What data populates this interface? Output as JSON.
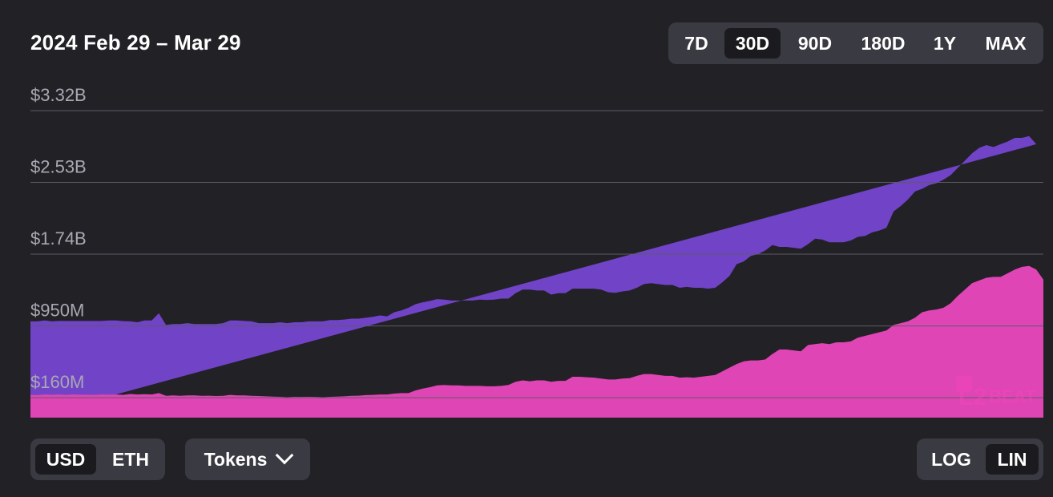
{
  "header": {
    "date_range": "2024 Feb 29 – Mar 29"
  },
  "range_selector": {
    "options": [
      "7D",
      "30D",
      "90D",
      "180D",
      "1Y",
      "MAX"
    ],
    "selected": "30D"
  },
  "currency_toggle": {
    "options": [
      "USD",
      "ETH"
    ],
    "selected": "USD"
  },
  "tokens_dropdown": {
    "label": "Tokens",
    "icon": "chevron-down-icon"
  },
  "scale_toggle": {
    "options": [
      "LOG",
      "LIN"
    ],
    "selected": "LIN"
  },
  "watermark": {
    "text": "L2BEAT"
  },
  "colors": {
    "background": "#222126",
    "series_upper": "#7143c7",
    "series_lower": "#df45b4",
    "gridline": "#5c5b66",
    "tick_label": "#a9a8b3",
    "control_bg": "#3a3a43",
    "control_active": "#1b1b1f"
  },
  "chart_data": {
    "type": "area",
    "stacked": true,
    "yscale": "linear",
    "ylim_millions": [
      -60,
      3320
    ],
    "yticks": [
      {
        "value": 160,
        "label": "$160M"
      },
      {
        "value": 950,
        "label": "$950M"
      },
      {
        "value": 1740,
        "label": "$1.74B"
      },
      {
        "value": 2530,
        "label": "$2.53B"
      },
      {
        "value": 3320,
        "label": "$3.32B"
      }
    ],
    "unit": "USD millions",
    "x_start": "2024-02-29",
    "x_end": "2024-03-29",
    "series": [
      {
        "color": "#df45b4",
        "values": [
          190,
          188,
          195,
          192,
          195,
          190,
          195,
          193,
          192,
          190,
          195,
          193,
          195,
          190,
          200,
          195,
          198,
          195,
          210,
          180,
          185,
          180,
          185,
          185,
          180,
          182,
          178,
          180,
          190,
          185,
          185,
          180,
          178,
          175,
          172,
          170,
          165,
          170,
          168,
          170,
          168,
          165,
          170,
          172,
          175,
          180,
          182,
          188,
          190,
          195,
          195,
          205,
          210,
          210,
          240,
          260,
          275,
          295,
          300,
          295,
          295,
          290,
          290,
          290,
          285,
          285,
          290,
          300,
          335,
          350,
          340,
          350,
          350,
          335,
          345,
          345,
          390,
          390,
          385,
          380,
          370,
          360,
          360,
          370,
          375,
          400,
          420,
          420,
          410,
          400,
          400,
          380,
          385,
          380,
          390,
          400,
          410,
          450,
          490,
          530,
          560,
          570,
          570,
          580,
          640,
          690,
          690,
          680,
          670,
          740,
          750,
          760,
          750,
          770,
          770,
          780,
          820,
          840,
          860,
          880,
          900,
          960,
          980,
          1000,
          1040,
          1100,
          1120,
          1130,
          1150,
          1200,
          1280,
          1350,
          1420,
          1450,
          1480,
          1490,
          1490,
          1530,
          1570,
          1600,
          1610,
          1570,
          1460
        ]
      },
      {
        "color": "#7143c7",
        "values": [
          810,
          812,
          815,
          808,
          810,
          815,
          810,
          812,
          813,
          815,
          810,
          817,
          815,
          812,
          800,
          795,
          812,
          815,
          880,
          780,
          785,
          790,
          795,
          785,
          790,
          788,
          792,
          800,
          820,
          825,
          820,
          820,
          802,
          805,
          808,
          820,
          815,
          820,
          822,
          830,
          832,
          835,
          845,
          843,
          845,
          850,
          848,
          852,
          860,
          870,
          860,
          895,
          910,
          940,
          950,
          950,
          950,
          950,
          940,
          935,
          935,
          940,
          940,
          950,
          950,
          955,
          960,
          950,
          975,
          1000,
          1010,
          990,
          990,
          960,
          965,
          965,
          970,
          970,
          975,
          980,
          980,
          960,
          955,
          960,
          965,
          970,
          990,
          1000,
          1000,
          1000,
          1000,
          990,
          995,
          990,
          980,
          960,
          960,
          980,
          1010,
          1100,
          1100,
          1150,
          1170,
          1200,
          1200,
          1130,
          1130,
          1130,
          1130,
          1110,
          1160,
          1140,
          1120,
          1100,
          1100,
          1110,
          1110,
          1100,
          1120,
          1120,
          1130,
          1250,
          1290,
          1340,
          1390,
          1360,
          1380,
          1390,
          1410,
          1410,
          1410,
          1420,
          1430,
          1460,
          1460,
          1430,
          1460,
          1450,
          1450,
          1420,
          1430,
          1380
        ]
      }
    ]
  }
}
